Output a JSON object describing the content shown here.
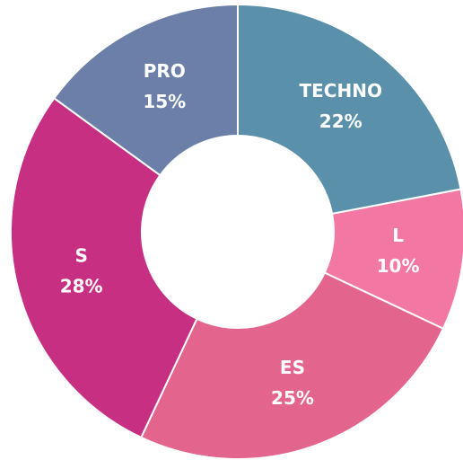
{
  "chart_data": {
    "type": "donut",
    "categories": [
      "TECHNO",
      "L",
      "ES",
      "S",
      "PRO"
    ],
    "values": [
      22,
      10,
      25,
      28,
      15
    ],
    "value_labels": [
      "22%",
      "10%",
      "25%",
      "28%",
      "15%"
    ],
    "colors": [
      "#5b90aa",
      "#f277a2",
      "#e3648d",
      "#c73082",
      "#6b7fa9"
    ]
  }
}
